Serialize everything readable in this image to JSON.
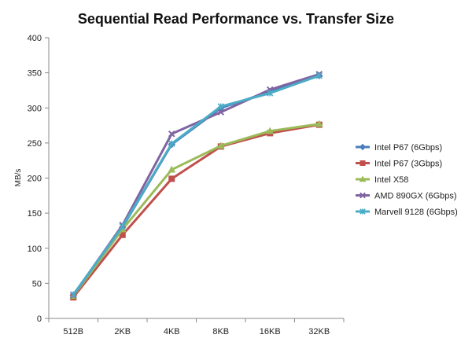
{
  "chart_data": {
    "type": "line",
    "title": "Sequential Read Performance vs. Transfer Size",
    "xlabel": "",
    "ylabel": "MB/s",
    "ylim": [
      0,
      400
    ],
    "yticks": [
      0,
      50,
      100,
      150,
      200,
      250,
      300,
      350,
      400
    ],
    "categories": [
      "512B",
      "2KB",
      "4KB",
      "8KB",
      "16KB",
      "32KB"
    ],
    "grid": false,
    "legend": "right",
    "series": [
      {
        "name": "Intel P67 (6Gbps)",
        "color": "#4a7ebb",
        "marker": "diamond",
        "values": [
          33,
          130,
          248,
          300,
          323,
          346
        ]
      },
      {
        "name": "Intel P67 (3Gbps)",
        "color": "#c0504d",
        "marker": "square",
        "values": [
          30,
          119,
          199,
          245,
          264,
          276
        ]
      },
      {
        "name": "Intel X58",
        "color": "#9bbb59",
        "marker": "triangle",
        "values": [
          32,
          127,
          212,
          246,
          267,
          277
        ]
      },
      {
        "name": "AMD 890GX (6Gbps)",
        "color": "#8064a2",
        "marker": "x",
        "values": [
          33,
          133,
          263,
          294,
          326,
          348
        ]
      },
      {
        "name": "Marvell 9128 (6Gbps)",
        "color": "#4bacc6",
        "marker": "asterisk",
        "values": [
          34,
          131,
          249,
          302,
          321,
          346
        ]
      }
    ]
  }
}
